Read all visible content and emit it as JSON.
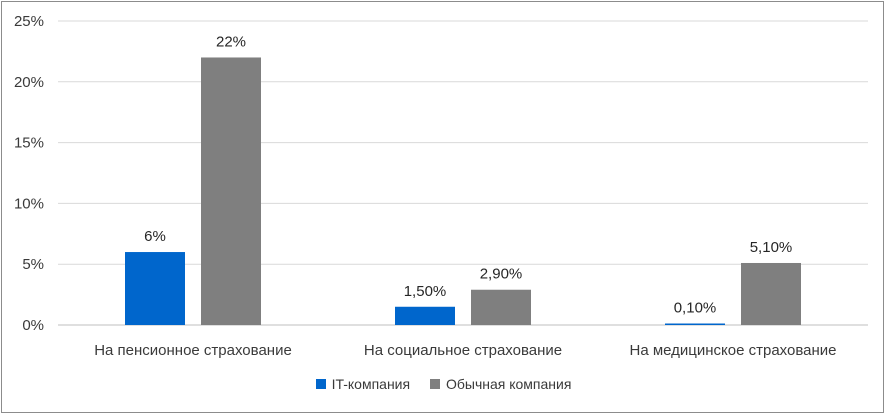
{
  "chart_data": {
    "type": "bar",
    "title": "",
    "xlabel": "",
    "ylabel": "",
    "categories": [
      "На пенсионное страхование",
      "На социальное страхование",
      "На медицинское страхование"
    ],
    "series": [
      {
        "name": "IT-компания",
        "values": [
          6,
          1.5,
          0.1
        ],
        "labels": [
          "6%",
          "1,50%",
          "0,10%"
        ],
        "color": "#0066cc"
      },
      {
        "name": "Обычная компания",
        "values": [
          22,
          2.9,
          5.1
        ],
        "labels": [
          "22%",
          "2,90%",
          "5,10%"
        ],
        "color": "#7f7f7f"
      }
    ],
    "ylim": [
      0,
      25
    ],
    "yticks": [
      0,
      5,
      10,
      15,
      20,
      25
    ],
    "ytick_labels": [
      "0%",
      "5%",
      "10%",
      "15%",
      "20%",
      "25%"
    ],
    "grid": true,
    "legend_position": "bottom"
  }
}
